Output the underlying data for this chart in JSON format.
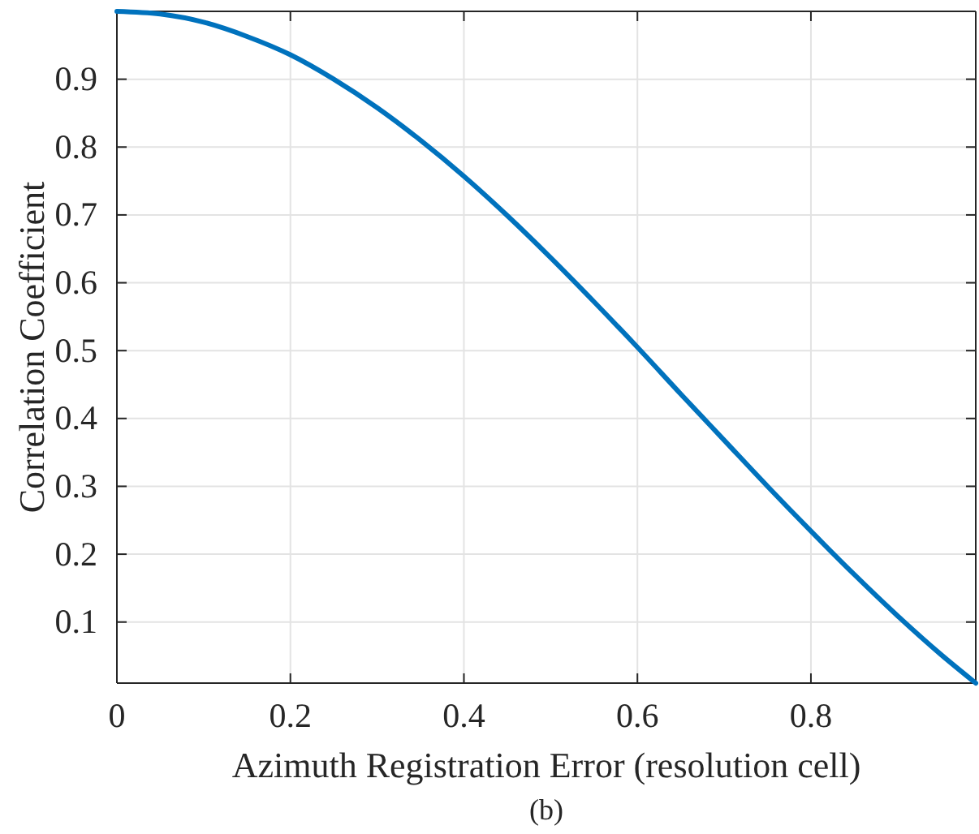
{
  "chart_data": {
    "type": "line",
    "xlabel": "Azimuth Registration Error (resolution cell)",
    "ylabel": "Correlation Coefficient",
    "annotations": [
      "(b)"
    ],
    "x": [
      0,
      0.05,
      0.1,
      0.15,
      0.2,
      0.25,
      0.3,
      0.35,
      0.4,
      0.45,
      0.5,
      0.55,
      0.6,
      0.65,
      0.7,
      0.75,
      0.8,
      0.85,
      0.9,
      0.95,
      0.99
    ],
    "series": [
      {
        "color": "#0072bd",
        "values": [
          1,
          0.996,
          0.984,
          0.963,
          0.936,
          0.9,
          0.858,
          0.81,
          0.757,
          0.699,
          0.637,
          0.572,
          0.505,
          0.436,
          0.368,
          0.3,
          0.234,
          0.17,
          0.109,
          0.052,
          0.01
        ]
      }
    ],
    "xlim": [
      0,
      0.99
    ],
    "ylim": [
      0.01,
      1
    ],
    "xticks": [
      0,
      0.2,
      0.4,
      0.6,
      0.8
    ],
    "yticks": [
      0.1,
      0.2,
      0.3,
      0.4,
      0.5,
      0.6,
      0.7,
      0.8,
      0.9
    ],
    "grid": true
  }
}
